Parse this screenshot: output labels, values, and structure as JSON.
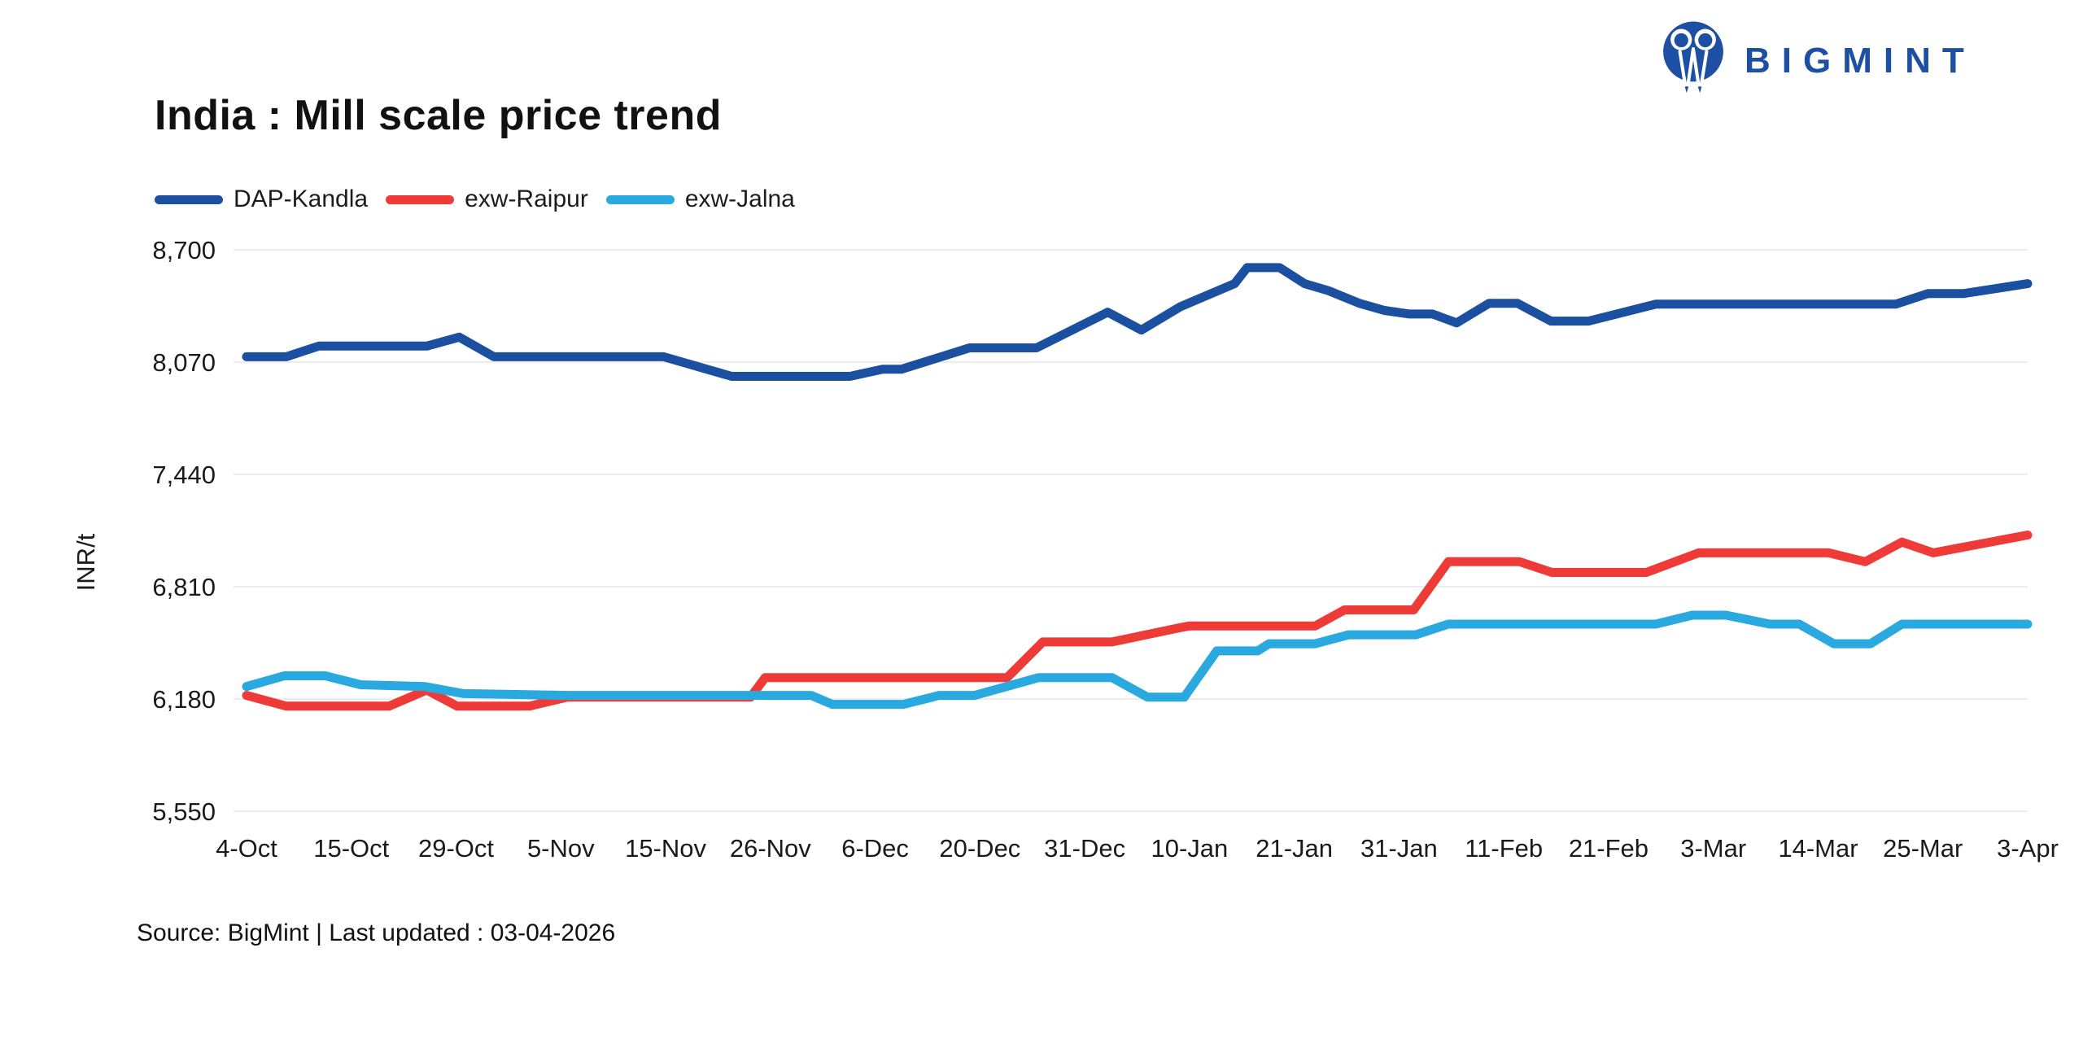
{
  "header": {
    "title": "India : Mill scale price trend"
  },
  "brand": {
    "name": "BIGMINT",
    "color": "#1d4fa3"
  },
  "axis": {
    "y_title": "INR/t"
  },
  "footer": {
    "source": "Source: BigMint | Last updated : 03-04-2026"
  },
  "chart_data": {
    "type": "line",
    "title": "India : Mill scale price trend",
    "xlabel": "",
    "ylabel": "INR/t",
    "x_labels": [
      "4-Oct",
      "15-Oct",
      "29-Oct",
      "5-Nov",
      "15-Nov",
      "26-Nov",
      "6-Dec",
      "20-Dec",
      "31-Dec",
      "10-Jan",
      "21-Jan",
      "31-Jan",
      "11-Feb",
      "21-Feb",
      "3-Mar",
      "14-Mar",
      "25-Mar",
      "3-Apr"
    ],
    "y_ticks": [
      5550,
      6180,
      6810,
      7440,
      8070,
      8700
    ],
    "ylim": [
      5550,
      8700
    ],
    "grid": "horizontal",
    "grid_color": "#ececec",
    "legend_position": "top-left",
    "series": [
      {
        "name": "DAP-Kandla",
        "color": "#1b4f9f",
        "values_at_labels": [
          8100,
          8160,
          8210,
          8100,
          8100,
          7990,
          8030,
          8150,
          8350,
          8400,
          8545,
          8345,
          8400,
          8330,
          8395,
          8395,
          8450,
          8510
        ],
        "points": [
          [
            0,
            8100
          ],
          [
            0.38,
            8100
          ],
          [
            0.69,
            8160
          ],
          [
            1.72,
            8160
          ],
          [
            2.03,
            8210
          ],
          [
            2.36,
            8100
          ],
          [
            3.98,
            8100
          ],
          [
            4.63,
            7990
          ],
          [
            5.76,
            7990
          ],
          [
            6.07,
            8030
          ],
          [
            6.25,
            8030
          ],
          [
            6.9,
            8150
          ],
          [
            7.54,
            8150
          ],
          [
            8.22,
            8350
          ],
          [
            8.54,
            8250
          ],
          [
            8.91,
            8380
          ],
          [
            9.43,
            8510
          ],
          [
            9.55,
            8600
          ],
          [
            9.86,
            8600
          ],
          [
            10.1,
            8510
          ],
          [
            10.33,
            8470
          ],
          [
            10.62,
            8400
          ],
          [
            10.86,
            8360
          ],
          [
            11.1,
            8340
          ],
          [
            11.32,
            8340
          ],
          [
            11.55,
            8290
          ],
          [
            11.86,
            8400
          ],
          [
            12.13,
            8400
          ],
          [
            12.45,
            8300
          ],
          [
            12.81,
            8300
          ],
          [
            13.45,
            8395
          ],
          [
            15.74,
            8395
          ],
          [
            16.05,
            8455
          ],
          [
            16.39,
            8455
          ],
          [
            17,
            8510
          ]
        ]
      },
      {
        "name": "exw-Raipur",
        "color": "#ee3b38",
        "values_at_labels": [
          6200,
          6140,
          6140,
          6190,
          6190,
          6300,
          6300,
          6300,
          6500,
          6590,
          6590,
          6680,
          6950,
          6890,
          7000,
          7000,
          7020,
          7100
        ],
        "points": [
          [
            0,
            6200
          ],
          [
            0.38,
            6140
          ],
          [
            1.36,
            6140
          ],
          [
            1.72,
            6230
          ],
          [
            2.01,
            6140
          ],
          [
            2.7,
            6140
          ],
          [
            3.06,
            6190
          ],
          [
            4.81,
            6190
          ],
          [
            4.95,
            6300
          ],
          [
            7.26,
            6300
          ],
          [
            7.6,
            6500
          ],
          [
            8.26,
            6500
          ],
          [
            8.91,
            6580
          ],
          [
            9.0,
            6590
          ],
          [
            10.2,
            6590
          ],
          [
            10.48,
            6680
          ],
          [
            11.14,
            6680
          ],
          [
            11.47,
            6950
          ],
          [
            12.15,
            6950
          ],
          [
            12.46,
            6890
          ],
          [
            13.36,
            6890
          ],
          [
            13.86,
            7000
          ],
          [
            15.1,
            7000
          ],
          [
            15.45,
            6950
          ],
          [
            15.8,
            7060
          ],
          [
            16.1,
            7000
          ],
          [
            17,
            7100
          ]
        ]
      },
      {
        "name": "exw-Jalna",
        "color": "#2aa9e0",
        "values_at_labels": [
          6250,
          6300,
          6210,
          6200,
          6200,
          6200,
          6150,
          6220,
          6300,
          6190,
          6490,
          6540,
          6600,
          6600,
          6650,
          6490,
          6600,
          6600
        ],
        "points": [
          [
            0,
            6250
          ],
          [
            0.36,
            6310
          ],
          [
            0.75,
            6310
          ],
          [
            1.09,
            6260
          ],
          [
            1.7,
            6250
          ],
          [
            2.07,
            6210
          ],
          [
            3.08,
            6200
          ],
          [
            5.39,
            6200
          ],
          [
            5.59,
            6150
          ],
          [
            6.27,
            6150
          ],
          [
            6.61,
            6200
          ],
          [
            6.95,
            6200
          ],
          [
            7.56,
            6300
          ],
          [
            8.26,
            6300
          ],
          [
            8.6,
            6190
          ],
          [
            8.95,
            6190
          ],
          [
            9.26,
            6450
          ],
          [
            9.65,
            6450
          ],
          [
            9.76,
            6490
          ],
          [
            10.2,
            6490
          ],
          [
            10.52,
            6540
          ],
          [
            11.16,
            6540
          ],
          [
            11.47,
            6600
          ],
          [
            13.45,
            6600
          ],
          [
            13.8,
            6650
          ],
          [
            14.12,
            6650
          ],
          [
            14.54,
            6600
          ],
          [
            14.82,
            6600
          ],
          [
            15.15,
            6490
          ],
          [
            15.5,
            6490
          ],
          [
            15.8,
            6600
          ],
          [
            17,
            6600
          ]
        ]
      }
    ]
  }
}
